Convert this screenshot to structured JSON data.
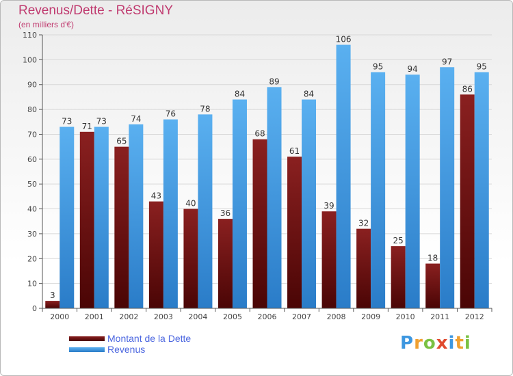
{
  "header": {
    "title": "Revenus/Dette - RéSIGNY",
    "subtitle": "(en milliers d'€)"
  },
  "chart_data": {
    "type": "bar",
    "categories": [
      "2000",
      "2001",
      "2002",
      "2003",
      "2004",
      "2005",
      "2006",
      "2007",
      "2008",
      "2009",
      "2010",
      "2011",
      "2012"
    ],
    "series": [
      {
        "name": "Montant de la Dette",
        "color": "#6e0f0f",
        "values": [
          3,
          71,
          65,
          43,
          40,
          36,
          68,
          61,
          39,
          32,
          25,
          18,
          86
        ]
      },
      {
        "name": "Revenus",
        "color": "#3d97e0",
        "values": [
          73,
          73,
          74,
          76,
          78,
          84,
          89,
          84,
          106,
          95,
          94,
          97,
          95
        ]
      }
    ],
    "ylim": [
      0,
      110
    ],
    "yticks": [
      0,
      10,
      20,
      30,
      40,
      50,
      60,
      70,
      80,
      90,
      100,
      110
    ],
    "grid": true,
    "legend_position": "bottom-left"
  },
  "brand": {
    "letters": [
      "P",
      "r",
      "o",
      "x",
      "i",
      "t",
      "i"
    ],
    "colors": [
      "#3d97e0",
      "#f0a030",
      "#7ac143",
      "#e04b2f",
      "#3d97e0",
      "#f0a030",
      "#7ac143"
    ]
  }
}
